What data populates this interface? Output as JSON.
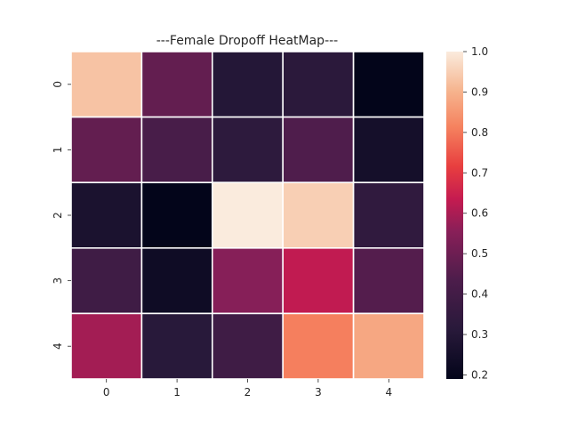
{
  "chart_data": {
    "type": "heatmap",
    "title": "---Female Dropoff HeatMap---",
    "xlabel": "",
    "ylabel": "",
    "x_categories": [
      "0",
      "1",
      "2",
      "3",
      "4"
    ],
    "y_categories": [
      "0",
      "1",
      "2",
      "3",
      "4"
    ],
    "values": [
      [
        0.93,
        0.48,
        0.3,
        0.32,
        0.19
      ],
      [
        0.48,
        0.42,
        0.33,
        0.44,
        0.25
      ],
      [
        0.27,
        0.19,
        1.0,
        0.95,
        0.34
      ],
      [
        0.39,
        0.23,
        0.55,
        0.63,
        0.45
      ],
      [
        0.59,
        0.31,
        0.39,
        0.81,
        0.88
      ]
    ],
    "colorbar": {
      "min": 0.19,
      "max": 1.0,
      "ticks": [
        "0.2",
        "0.3",
        "0.4",
        "0.5",
        "0.6",
        "0.7",
        "0.8",
        "0.9",
        "1.0"
      ],
      "tick_values": [
        0.2,
        0.3,
        0.4,
        0.5,
        0.6,
        0.7,
        0.8,
        0.9,
        1.0
      ]
    },
    "colormap": "rocket",
    "cell_border_color": "#ffffff",
    "grid": false
  }
}
